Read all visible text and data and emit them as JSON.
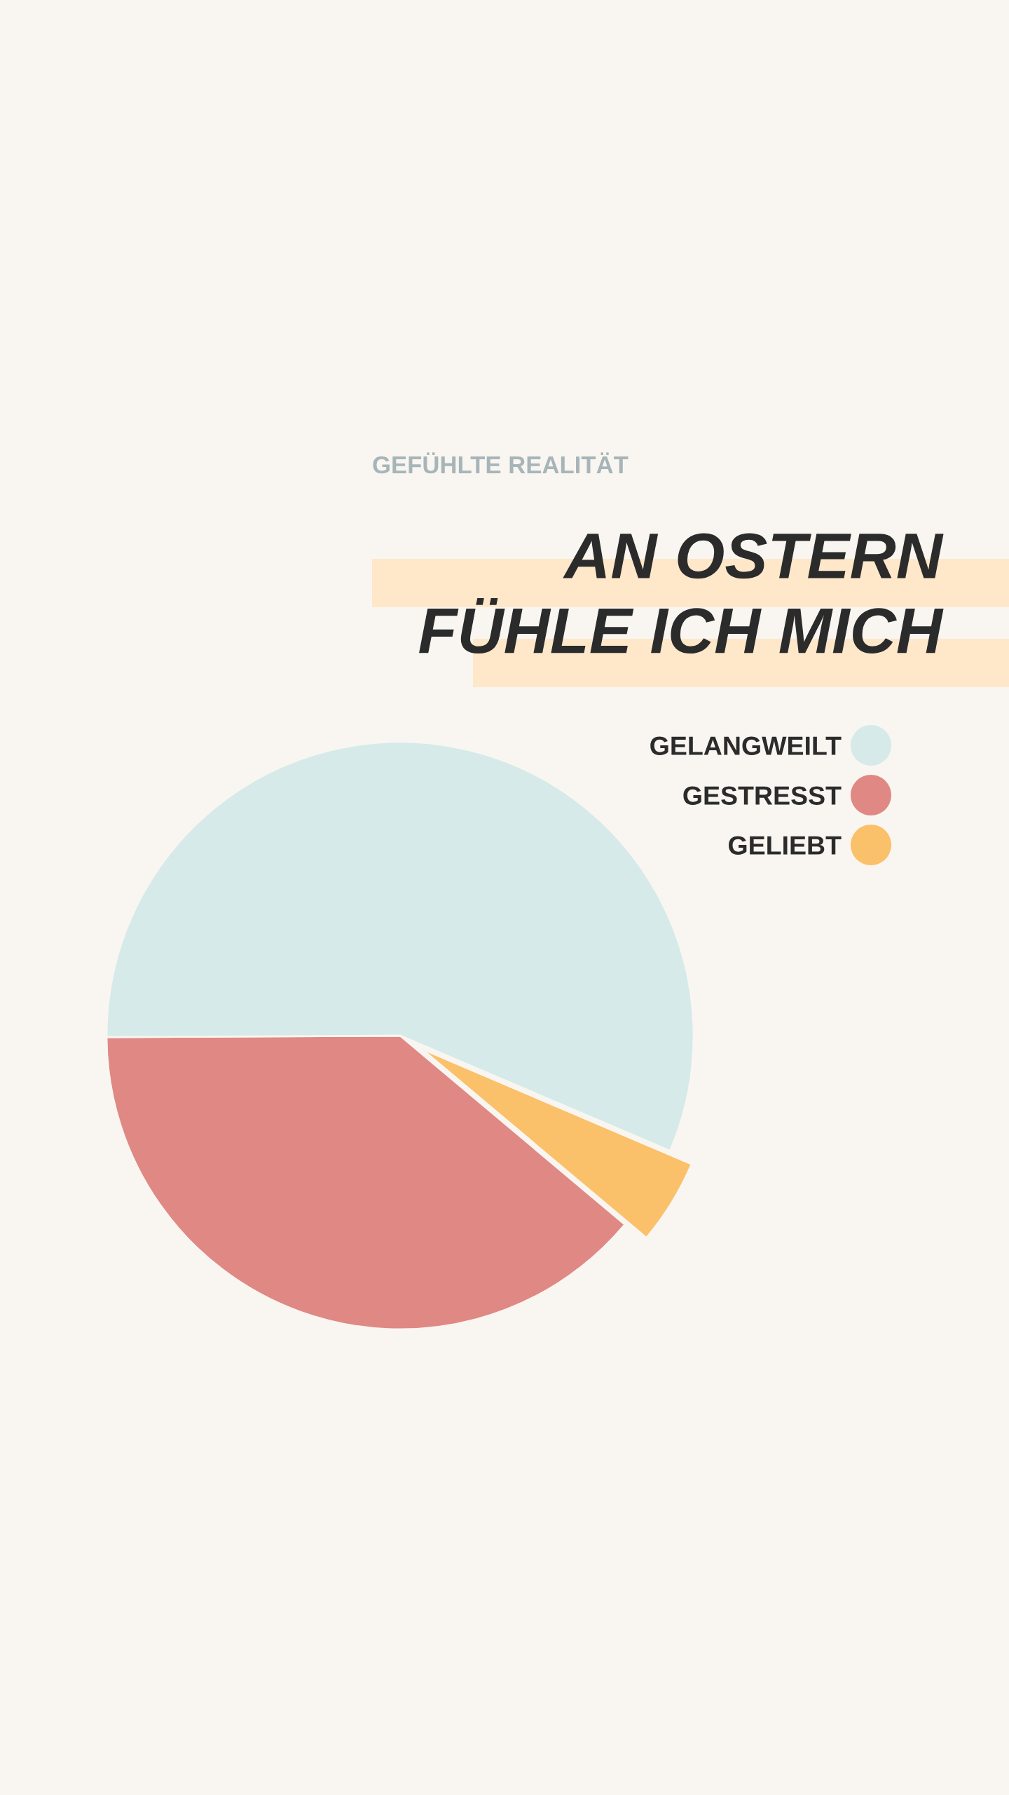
{
  "chart_data": {
    "type": "pie",
    "title": "AN OSTERN\nFÜHLE ICH MICH",
    "subtitle": "GEFÜHLTE REALITÄT",
    "categories": [
      "GELANGWEILT",
      "GESTRESST",
      "GELIEBT"
    ],
    "values": [
      56.5,
      38.8,
      4.7
    ],
    "colors": [
      "#d5eae9",
      "#e08884",
      "#fbc06a"
    ],
    "legend": "top right"
  }
}
